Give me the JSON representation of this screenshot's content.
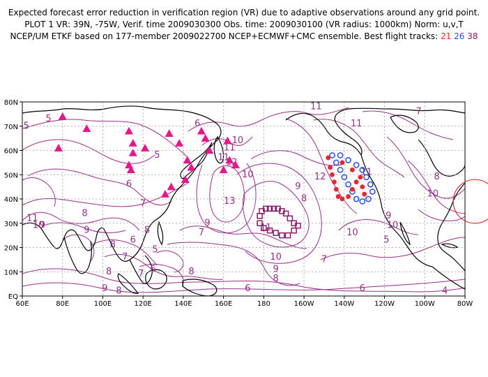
{
  "header": {
    "line1": "Expected forecast error reduction in verification region (VR) due to adaptive observations around any grid point.",
    "line2": "PLOT 1 VR: 39N, -75W, Verif. time 2009030300 Obs. time: 2009030100 (VR radius: 1000km) Norm: u,v,T",
    "line3_prefix": "NCEP/UM ETKF based on 177-member 2009022700 NCEP+ECMWF+CMC ensemble. Best flight tracks:",
    "track_ids": [
      "21",
      "26",
      "38"
    ]
  },
  "axes": {
    "x_ticks": [
      "60E",
      "80E",
      "100E",
      "120E",
      "140E",
      "160E",
      "180",
      "160W",
      "140W",
      "120W",
      "100W",
      "80W"
    ],
    "y_ticks": [
      "EQ",
      "10N",
      "20N",
      "30N",
      "40N",
      "50N",
      "60N",
      "70N",
      "80N"
    ]
  },
  "contour_labels": [
    {
      "text": "5",
      "lon": 73,
      "lat": 73
    },
    {
      "text": "5",
      "lon": 62,
      "lat": 70
    },
    {
      "text": "5",
      "lon": 127,
      "lat": 58
    },
    {
      "text": "6",
      "lon": 113,
      "lat": 46
    },
    {
      "text": "7",
      "lon": 120,
      "lat": 38
    },
    {
      "text": "11",
      "lon": 65,
      "lat": 32
    },
    {
      "text": "10",
      "lon": 68,
      "lat": 29
    },
    {
      "text": "9",
      "lon": 70,
      "lat": 29
    },
    {
      "text": "9",
      "lon": 92,
      "lat": 27
    },
    {
      "text": "8",
      "lon": 91,
      "lat": 34
    },
    {
      "text": "8",
      "lon": 105,
      "lat": 21
    },
    {
      "text": "8",
      "lon": 103,
      "lat": 10
    },
    {
      "text": "9",
      "lon": 101,
      "lat": 3
    },
    {
      "text": "8",
      "lon": 108,
      "lat": 2
    },
    {
      "text": "7",
      "lon": 111,
      "lat": 16
    },
    {
      "text": "6",
      "lon": 115,
      "lat": 23
    },
    {
      "text": "6",
      "lon": 125,
      "lat": 11
    },
    {
      "text": "5",
      "lon": 126,
      "lat": 19
    },
    {
      "text": "7",
      "lon": 119,
      "lat": 9
    },
    {
      "text": "8",
      "lon": 122,
      "lat": 27
    },
    {
      "text": "8",
      "lon": 144,
      "lat": 10
    },
    {
      "text": "7",
      "lon": 149,
      "lat": 26
    },
    {
      "text": "9",
      "lon": 152,
      "lat": 30
    },
    {
      "text": "13",
      "lon": 163,
      "lat": 39
    },
    {
      "text": "10",
      "lon": 172,
      "lat": 50
    },
    {
      "text": "6",
      "lon": 147,
      "lat": 71
    },
    {
      "text": "11",
      "lon": 163,
      "lat": 61
    },
    {
      "text": "11",
      "lon": 160,
      "lat": 57
    },
    {
      "text": "12",
      "lon": 164,
      "lat": 55
    },
    {
      "text": "10",
      "lon": 167,
      "lat": 64
    },
    {
      "text": "11",
      "lon": 181,
      "lat": 28
    },
    {
      "text": "10",
      "lon": 186,
      "lat": 16
    },
    {
      "text": "9",
      "lon": 186,
      "lat": 11
    },
    {
      "text": "8",
      "lon": 186,
      "lat": 7
    },
    {
      "text": "6",
      "lon": 172,
      "lat": 3
    },
    {
      "text": "7",
      "lon": 210,
      "lat": 15
    },
    {
      "text": "6",
      "lon": 229,
      "lat": 3
    },
    {
      "text": "4",
      "lon": 270,
      "lat": 2
    },
    {
      "text": "11",
      "lon": 206,
      "lat": 78
    },
    {
      "text": "11",
      "lon": 226,
      "lat": 71
    },
    {
      "text": "12",
      "lon": 208,
      "lat": 49
    },
    {
      "text": "9",
      "lon": 197,
      "lat": 45
    },
    {
      "text": "8",
      "lon": 200,
      "lat": 40
    },
    {
      "text": "10",
      "lon": 224,
      "lat": 26
    },
    {
      "text": "11",
      "lon": 231,
      "lat": 51
    },
    {
      "text": "9",
      "lon": 242,
      "lat": 33
    },
    {
      "text": "10",
      "lon": 244,
      "lat": 29
    },
    {
      "text": "5",
      "lon": 241,
      "lat": 23
    },
    {
      "text": "7",
      "lon": 257,
      "lat": 76
    },
    {
      "text": "8",
      "lon": 266,
      "lat": 49
    },
    {
      "text": "10",
      "lon": 264,
      "lat": 42
    }
  ],
  "tracks": {
    "triangles": [
      {
        "lon": 80,
        "lat": 74
      },
      {
        "lon": 78,
        "lat": 61
      },
      {
        "lon": 92,
        "lat": 69
      },
      {
        "lon": 113,
        "lat": 68
      },
      {
        "lon": 115,
        "lat": 63
      },
      {
        "lon": 115,
        "lat": 59
      },
      {
        "lon": 113,
        "lat": 54
      },
      {
        "lon": 114,
        "lat": 52
      },
      {
        "lon": 121,
        "lat": 61
      },
      {
        "lon": 133,
        "lat": 67
      },
      {
        "lon": 138,
        "lat": 63
      },
      {
        "lon": 149,
        "lat": 68
      },
      {
        "lon": 151,
        "lat": 65
      },
      {
        "lon": 153,
        "lat": 60
      },
      {
        "lon": 142,
        "lat": 56
      },
      {
        "lon": 144,
        "lat": 53
      },
      {
        "lon": 141,
        "lat": 48
      },
      {
        "lon": 134,
        "lat": 45
      },
      {
        "lon": 131,
        "lat": 42
      },
      {
        "lon": 162,
        "lat": 64
      },
      {
        "lon": 163,
        "lat": 56
      },
      {
        "lon": 166,
        "lat": 54
      },
      {
        "lon": 160,
        "lat": 52
      }
    ],
    "squares": [
      {
        "lon": 179,
        "lat": 35
      },
      {
        "lon": 181,
        "lat": 36
      },
      {
        "lon": 183,
        "lat": 36
      },
      {
        "lon": 185,
        "lat": 36
      },
      {
        "lon": 187,
        "lat": 36
      },
      {
        "lon": 189,
        "lat": 35
      },
      {
        "lon": 191,
        "lat": 34
      },
      {
        "lon": 193,
        "lat": 32
      },
      {
        "lon": 195,
        "lat": 30
      },
      {
        "lon": 197,
        "lat": 29
      },
      {
        "lon": 195,
        "lat": 27
      },
      {
        "lon": 192,
        "lat": 25
      },
      {
        "lon": 189,
        "lat": 25
      },
      {
        "lon": 186,
        "lat": 26
      },
      {
        "lon": 183,
        "lat": 27
      },
      {
        "lon": 180,
        "lat": 28
      },
      {
        "lon": 178,
        "lat": 30
      },
      {
        "lon": 178,
        "lat": 33
      }
    ],
    "red_dots": [
      {
        "lon": 212,
        "lat": 57
      },
      {
        "lon": 213,
        "lat": 53
      },
      {
        "lon": 214,
        "lat": 50
      },
      {
        "lon": 215,
        "lat": 47
      },
      {
        "lon": 216,
        "lat": 44
      },
      {
        "lon": 217,
        "lat": 41
      },
      {
        "lon": 219,
        "lat": 40
      },
      {
        "lon": 222,
        "lat": 41
      },
      {
        "lon": 224,
        "lat": 44
      },
      {
        "lon": 226,
        "lat": 47
      },
      {
        "lon": 228,
        "lat": 49
      },
      {
        "lon": 229,
        "lat": 45
      },
      {
        "lon": 230,
        "lat": 42
      },
      {
        "lon": 224,
        "lat": 52
      },
      {
        "lon": 219,
        "lat": 55
      }
    ],
    "blue_circles": [
      {
        "lon": 214,
        "lat": 58
      },
      {
        "lon": 216,
        "lat": 55
      },
      {
        "lon": 218,
        "lat": 52
      },
      {
        "lon": 220,
        "lat": 49
      },
      {
        "lon": 222,
        "lat": 46
      },
      {
        "lon": 224,
        "lat": 43
      },
      {
        "lon": 226,
        "lat": 40
      },
      {
        "lon": 229,
        "lat": 39
      },
      {
        "lon": 232,
        "lat": 40
      },
      {
        "lon": 234,
        "lat": 43
      },
      {
        "lon": 233,
        "lat": 46
      },
      {
        "lon": 231,
        "lat": 49
      },
      {
        "lon": 229,
        "lat": 52
      },
      {
        "lon": 226,
        "lat": 54
      },
      {
        "lon": 222,
        "lat": 56
      },
      {
        "lon": 218,
        "lat": 58
      }
    ]
  },
  "verification_region": {
    "lon": -75,
    "lat": 39,
    "radius_km": 1000
  },
  "colors": {
    "contour": "#9b2c8c",
    "coast": "#000000",
    "grid": "#9a9a9a",
    "triangle": "#e8168c",
    "square": "#8a1a6a",
    "red_track": "#e8262b",
    "blue_track": "#2550e0",
    "vr_circle": "#e03030"
  },
  "map_extent": {
    "lon_min": 60,
    "lon_max": 280,
    "lat_min": 0,
    "lat_max": 80
  }
}
